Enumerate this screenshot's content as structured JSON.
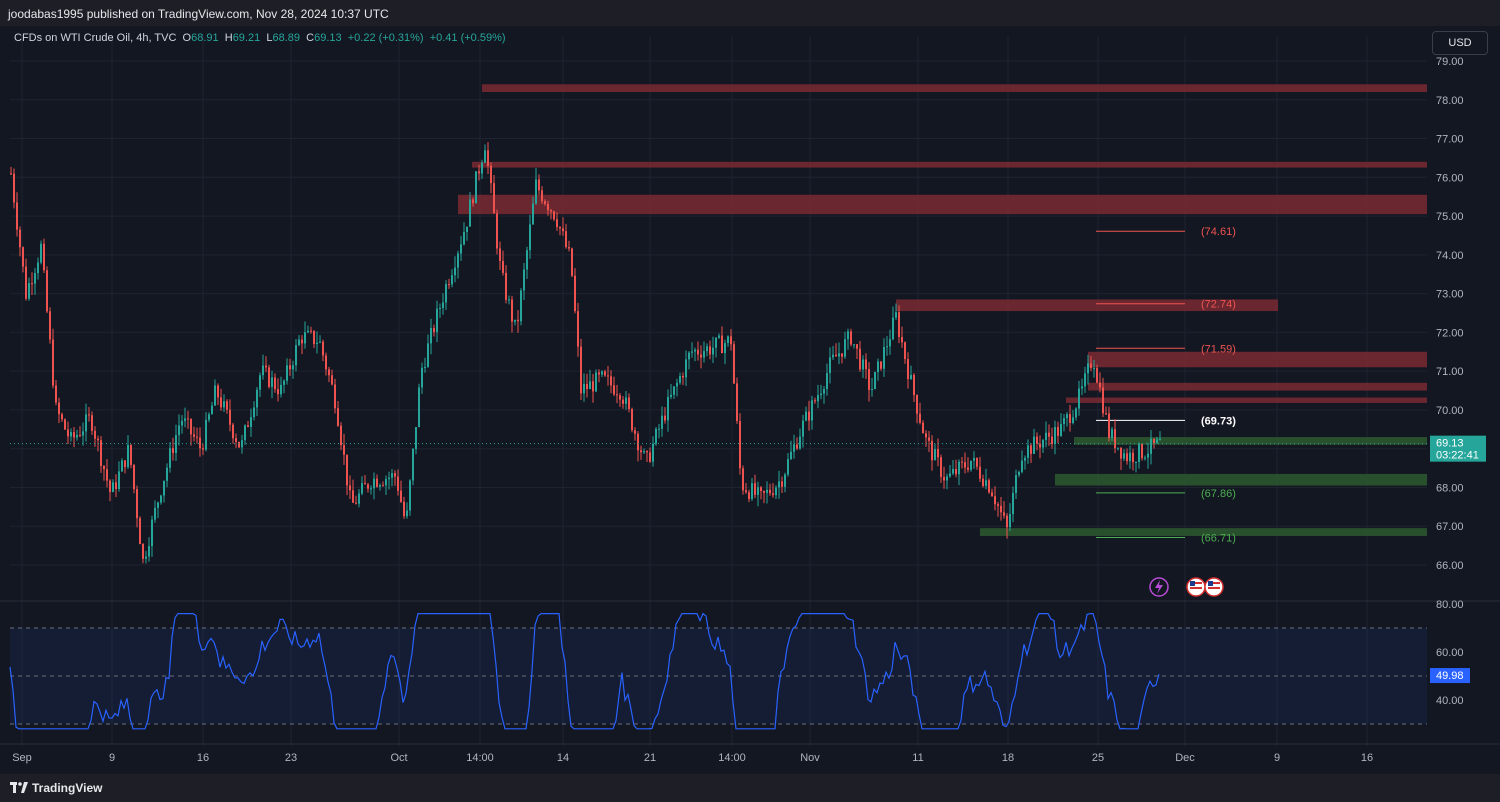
{
  "header": {
    "published": "joodabas1995 published on TradingView.com, Nov 28, 2024 10:37 UTC"
  },
  "legend": {
    "symbol": "CFDs on WTI Crude Oil, 4h, TVC",
    "o_label": "O",
    "o_val": "68.91",
    "h_label": "H",
    "h_val": "69.21",
    "l_label": "L",
    "l_val": "68.89",
    "c_label": "C",
    "c_val": "69.13",
    "change": "+0.22 (+0.31%)",
    "change2": "+0.41 (+0.59%)"
  },
  "currency_button": "USD",
  "price_axis": [
    "79.00",
    "78.00",
    "77.00",
    "76.00",
    "75.00",
    "74.00",
    "73.00",
    "72.00",
    "71.00",
    "70.00",
    "69.00",
    "68.00",
    "67.00",
    "66.00"
  ],
  "rsi_axis": [
    "80.00",
    "60.00",
    "40.00"
  ],
  "time_axis": [
    "Sep",
    "9",
    "16",
    "23",
    "Oct",
    "14:00",
    "14",
    "21",
    "14:00",
    "Nov",
    "11",
    "18",
    "25",
    "Dec",
    "9",
    "16"
  ],
  "current_price": {
    "value": "69.13",
    "countdown": "03:22:41"
  },
  "rsi_value": "49.98",
  "level_labels": [
    "(74.61)",
    "(72.74)",
    "(71.59)",
    "(69.73)",
    "(67.86)",
    "(66.71)"
  ],
  "footer": {
    "brand": "TradingView"
  },
  "colors": {
    "up": "#26a69a",
    "down": "#ef5350",
    "resistance": "#7a2a33",
    "support": "#2e5a2f",
    "rsi": "#2962ff"
  },
  "icons": [
    "lightning-icon",
    "us-flag-icon",
    "us-flag-icon"
  ]
}
